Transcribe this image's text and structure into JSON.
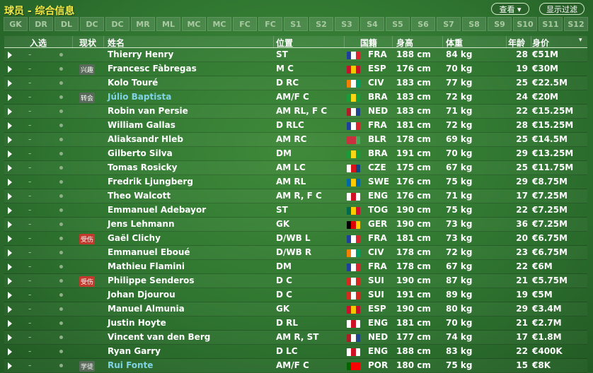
{
  "title": "球员 - 综合信息",
  "buttons": {
    "view": "查看 ▾",
    "filter": "显示过滤"
  },
  "tabs": [
    "GK",
    "DR",
    "DL",
    "DC",
    "DC",
    "MR",
    "ML",
    "MC",
    "MC",
    "FC",
    "FC",
    "S1",
    "S2",
    "S3",
    "S4",
    "S5",
    "S6",
    "S7",
    "S8",
    "S9",
    "S10",
    "S11",
    "S12"
  ],
  "columns": {
    "select": "入选",
    "status": "现状",
    "name": "姓名",
    "position": "位置",
    "nationality": "国籍",
    "height": "身高",
    "weight": "体重",
    "age": "年龄",
    "value": "身价",
    "sort_icon": "▾"
  },
  "flag_colors": {
    "FRA": [
      "#1f3f9a",
      "#ffffff",
      "#d8262e"
    ],
    "ESP": [
      "#c8102e",
      "#f7c600",
      "#c8102e"
    ],
    "CIV": [
      "#f77f00",
      "#ffffff",
      "#009e60"
    ],
    "BRA": [
      "#1a9b3a",
      "#f7d716",
      "#1a9b3a"
    ],
    "NED": [
      "#ae1c28",
      "#ffffff",
      "#21468b"
    ],
    "BLR": [
      "#c8313e",
      "#c8313e",
      "#4aa657"
    ],
    "CZE": [
      "#ffffff",
      "#d7141a",
      "#11457e"
    ],
    "SWE": [
      "#006aa7",
      "#fecc00",
      "#006aa7"
    ],
    "ENG": [
      "#ffffff",
      "#ce1124",
      "#ffffff"
    ],
    "TOG": [
      "#006a4e",
      "#ffce00",
      "#d21034"
    ],
    "GER": [
      "#000000",
      "#dd0000",
      "#ffce00"
    ],
    "SUI": [
      "#d52b1e",
      "#ffffff",
      "#d52b1e"
    ],
    "POR": [
      "#006600",
      "#ff0000",
      "#ff0000"
    ]
  },
  "players": [
    {
      "select": "-",
      "status": "",
      "name": "Thierry Henry",
      "position": "ST",
      "nat": "FRA",
      "height": "188 cm",
      "weight": "84 kg",
      "age": "28",
      "value": "€51M"
    },
    {
      "select": "-",
      "status": "兴趣",
      "name": "Francesc Fàbregas",
      "position": "M C",
      "nat": "ESP",
      "height": "176 cm",
      "weight": "70 kg",
      "age": "19",
      "value": "€30M"
    },
    {
      "select": "-",
      "status": "",
      "name": "Kolo Touré",
      "position": "D RC",
      "nat": "CIV",
      "height": "183 cm",
      "weight": "77 kg",
      "age": "25",
      "value": "€22.5M"
    },
    {
      "select": "-",
      "status": "转会",
      "name": "Júlio Baptista",
      "position": "AM/F C",
      "nat": "BRA",
      "height": "183 cm",
      "weight": "72 kg",
      "age": "24",
      "value": "€20M",
      "highlight": true
    },
    {
      "select": "-",
      "status": "",
      "name": "Robin van Persie",
      "position": "AM RL, F C",
      "nat": "NED",
      "height": "183 cm",
      "weight": "71 kg",
      "age": "22",
      "value": "€15.25M"
    },
    {
      "select": "-",
      "status": "",
      "name": "William Gallas",
      "position": "D RLC",
      "nat": "FRA",
      "height": "181 cm",
      "weight": "72 kg",
      "age": "28",
      "value": "€15.25M"
    },
    {
      "select": "-",
      "status": "",
      "name": "Aliaksandr Hleb",
      "position": "AM RC",
      "nat": "BLR",
      "height": "178 cm",
      "weight": "69 kg",
      "age": "25",
      "value": "€14.5M"
    },
    {
      "select": "-",
      "status": "",
      "name": "Gilberto Silva",
      "position": "DM",
      "nat": "BRA",
      "height": "191 cm",
      "weight": "70 kg",
      "age": "29",
      "value": "€13.25M"
    },
    {
      "select": "-",
      "status": "",
      "name": "Tomas Rosicky",
      "position": "AM LC",
      "nat": "CZE",
      "height": "175 cm",
      "weight": "67 kg",
      "age": "25",
      "value": "€11.75M"
    },
    {
      "select": "-",
      "status": "",
      "name": "Fredrik Ljungberg",
      "position": "AM RL",
      "nat": "SWE",
      "height": "176 cm",
      "weight": "75 kg",
      "age": "29",
      "value": "€8.75M"
    },
    {
      "select": "-",
      "status": "",
      "name": "Theo Walcott",
      "position": "AM R, F C",
      "nat": "ENG",
      "height": "176 cm",
      "weight": "71 kg",
      "age": "17",
      "value": "€7.25M"
    },
    {
      "select": "-",
      "status": "",
      "name": "Emmanuel Adebayor",
      "position": "ST",
      "nat": "TOG",
      "height": "190 cm",
      "weight": "75 kg",
      "age": "22",
      "value": "€7.25M"
    },
    {
      "select": "-",
      "status": "",
      "name": "Jens Lehmann",
      "position": "GK",
      "nat": "GER",
      "height": "190 cm",
      "weight": "73 kg",
      "age": "36",
      "value": "€7.25M"
    },
    {
      "select": "-",
      "status": "受伤",
      "injured": true,
      "name": "Gaël Clichy",
      "position": "D/WB L",
      "nat": "FRA",
      "height": "181 cm",
      "weight": "73 kg",
      "age": "20",
      "value": "€6.75M"
    },
    {
      "select": "-",
      "status": "",
      "name": "Emmanuel Eboué",
      "position": "D/WB R",
      "nat": "CIV",
      "height": "178 cm",
      "weight": "72 kg",
      "age": "23",
      "value": "€6.75M"
    },
    {
      "select": "-",
      "status": "",
      "name": "Mathieu Flamini",
      "position": "DM",
      "nat": "FRA",
      "height": "178 cm",
      "weight": "67 kg",
      "age": "22",
      "value": "€6M"
    },
    {
      "select": "-",
      "status": "受伤",
      "injured": true,
      "name": "Philippe Senderos",
      "position": "D C",
      "nat": "SUI",
      "height": "190 cm",
      "weight": "87 kg",
      "age": "21",
      "value": "€5.75M"
    },
    {
      "select": "-",
      "status": "",
      "name": "Johan Djourou",
      "position": "D C",
      "nat": "SUI",
      "height": "191 cm",
      "weight": "89 kg",
      "age": "19",
      "value": "€5M"
    },
    {
      "select": "-",
      "status": "",
      "name": "Manuel Almunia",
      "position": "GK",
      "nat": "ESP",
      "height": "190 cm",
      "weight": "80 kg",
      "age": "29",
      "value": "€3.4M"
    },
    {
      "select": "-",
      "status": "",
      "name": "Justin Hoyte",
      "position": "D RL",
      "nat": "ENG",
      "height": "181 cm",
      "weight": "70 kg",
      "age": "21",
      "value": "€2.7M"
    },
    {
      "select": "-",
      "status": "",
      "name": "Vincent van den Berg",
      "position": "AM R, ST",
      "nat": "NED",
      "height": "177 cm",
      "weight": "74 kg",
      "age": "17",
      "value": "€1.8M"
    },
    {
      "select": "-",
      "status": "",
      "name": "Ryan Garry",
      "position": "D LC",
      "nat": "ENG",
      "height": "188 cm",
      "weight": "83 kg",
      "age": "22",
      "value": "€400K"
    },
    {
      "select": "-",
      "status": "学徒",
      "name": "Rui Fonte",
      "position": "AM/F C",
      "nat": "POR",
      "height": "180 cm",
      "weight": "75 kg",
      "age": "15",
      "value": "€8K",
      "highlight": true
    }
  ]
}
